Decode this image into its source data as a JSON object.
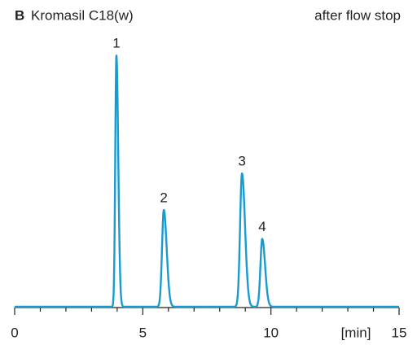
{
  "chart_data": {
    "type": "chromatogram",
    "panel": "B",
    "title": "Kromasil C18(w)",
    "subtitle": "after flow stop",
    "xlabel": "[min]",
    "peaks": [
      {
        "label": "1",
        "time": 3.97,
        "height": 100,
        "width": 0.045
      },
      {
        "label": "2",
        "time": 5.82,
        "height": 38.5,
        "width": 0.07
      },
      {
        "label": "3",
        "time": 8.87,
        "height": 53,
        "width": 0.075
      },
      {
        "label": "4",
        "time": 9.66,
        "height": 27,
        "width": 0.07
      }
    ],
    "color": "#1a9bd0",
    "xlim": [
      0,
      15
    ],
    "xticks": [
      0,
      5,
      10,
      15
    ],
    "xminorticks": [
      1,
      2,
      3,
      4,
      6,
      7,
      8,
      9,
      11,
      12,
      13,
      14
    ],
    "ylim": [
      0,
      100
    ]
  }
}
